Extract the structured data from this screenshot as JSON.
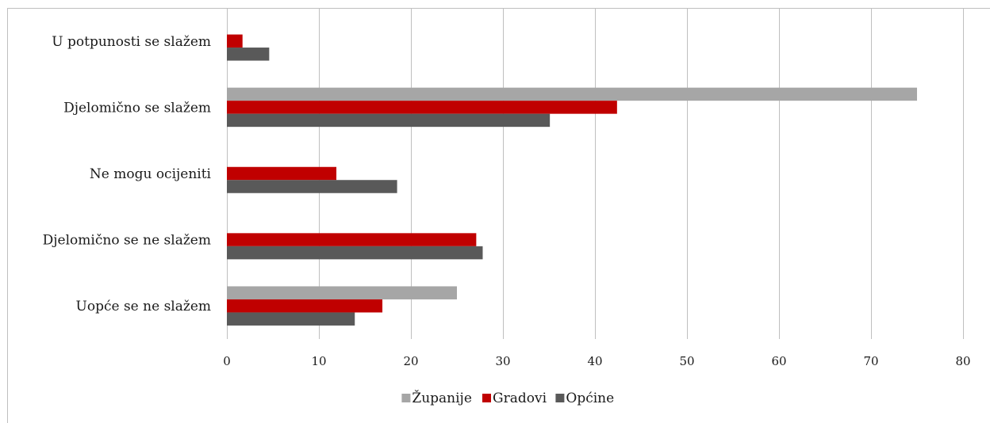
{
  "chart_data": {
    "type": "bar",
    "orientation": "horizontal",
    "categories": [
      "U potpunosti se slažem",
      "Djelomično se slažem",
      "Ne mogu ocijeniti",
      "Djelomično se ne slažem",
      "Uopće se ne slažem"
    ],
    "series": [
      {
        "name": "Županije",
        "color": "#a6a6a6",
        "values": [
          0,
          75,
          0,
          0,
          25
        ]
      },
      {
        "name": "Gradovi",
        "color": "#c00000",
        "values": [
          1.7,
          42.4,
          11.9,
          27.1,
          16.9
        ]
      },
      {
        "name": "Općine",
        "color": "#595959",
        "values": [
          4.6,
          35.1,
          18.5,
          27.8,
          13.9
        ]
      }
    ],
    "xticks": [
      "0",
      "10",
      "20",
      "30",
      "40",
      "50",
      "60",
      "70",
      "80"
    ],
    "xlim": [
      0,
      80
    ],
    "grid": true,
    "legend_position": "bottom"
  }
}
